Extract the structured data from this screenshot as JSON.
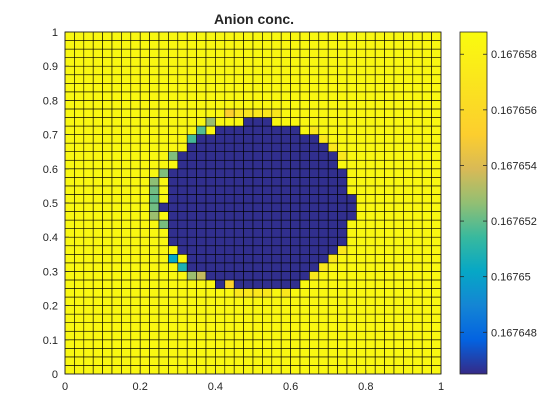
{
  "chart_data": {
    "type": "heatmap",
    "title": "Anion conc.",
    "xlabel": "",
    "ylabel": "",
    "xlim": [
      0,
      1
    ],
    "ylim": [
      0,
      1
    ],
    "grid_resolution": 40,
    "x_ticks": [
      "0",
      "0.2",
      "0.4",
      "0.6",
      "0.8",
      "1"
    ],
    "x_tick_values": [
      0,
      0.2,
      0.4,
      0.6,
      0.8,
      1
    ],
    "y_ticks": [
      "0",
      "0.1",
      "0.2",
      "0.3",
      "0.4",
      "0.5",
      "0.6",
      "0.7",
      "0.8",
      "0.9",
      "1"
    ],
    "y_tick_values": [
      0,
      0.1,
      0.2,
      0.3,
      0.4,
      0.5,
      0.6,
      0.7,
      0.8,
      0.9,
      1
    ],
    "colorbar": {
      "colormap": "parula",
      "range": [
        0.1676465,
        0.1676588
      ],
      "ticks": [
        "0.167648",
        "0.16765",
        "0.167652",
        "0.167654",
        "0.167656",
        "0.167658"
      ],
      "tick_values": [
        0.167648,
        0.16765,
        0.167652,
        0.167654,
        0.167656,
        0.167658
      ]
    },
    "field": {
      "background_value": 0.1676585,
      "inclusion_value": 0.1676466,
      "inclusion_shape": "circle",
      "inclusion_center": [
        0.514,
        0.49
      ],
      "inclusion_radius": 0.252,
      "edge_cells": [
        {
          "x": 0.4625,
          "y": 0.7625,
          "value": 0.1676568
        },
        {
          "x": 0.4875,
          "y": 0.7625,
          "value": 0.167657
        },
        {
          "x": 0.5125,
          "y": 0.7625,
          "value": 0.1676572
        },
        {
          "x": 0.5375,
          "y": 0.7625,
          "value": 0.1676572
        },
        {
          "x": 0.5625,
          "y": 0.7625,
          "value": 0.1676572
        },
        {
          "x": 0.4375,
          "y": 0.7625,
          "value": 0.1676552
        },
        {
          "x": 0.3875,
          "y": 0.7375,
          "value": 0.1676528
        },
        {
          "x": 0.3625,
          "y": 0.7125,
          "value": 0.1676518
        },
        {
          "x": 0.3375,
          "y": 0.6875,
          "value": 0.1676516
        },
        {
          "x": 0.6625,
          "y": 0.7125,
          "value": 0.1676572
        },
        {
          "x": 0.6875,
          "y": 0.6875,
          "value": 0.1676572
        },
        {
          "x": 0.7125,
          "y": 0.6625,
          "value": 0.1676572
        },
        {
          "x": 0.7375,
          "y": 0.6375,
          "value": 0.1676572
        },
        {
          "x": 0.7375,
          "y": 0.3625,
          "value": 0.1676572
        },
        {
          "x": 0.7125,
          "y": 0.3375,
          "value": 0.1676572
        },
        {
          "x": 0.6875,
          "y": 0.3125,
          "value": 0.1676572
        },
        {
          "x": 0.6625,
          "y": 0.2875,
          "value": 0.1676572
        },
        {
          "x": 0.5875,
          "y": 0.2375,
          "value": 0.1676572
        },
        {
          "x": 0.5375,
          "y": 0.2375,
          "value": 0.1676572
        },
        {
          "x": 0.5125,
          "y": 0.2375,
          "value": 0.1676572
        },
        {
          "x": 0.4875,
          "y": 0.2375,
          "value": 0.1676572
        },
        {
          "x": 0.4625,
          "y": 0.2375,
          "value": 0.1676572
        },
        {
          "x": 0.4375,
          "y": 0.2625,
          "value": 0.1676555
        },
        {
          "x": 0.3625,
          "y": 0.2875,
          "value": 0.1676535
        },
        {
          "x": 0.3375,
          "y": 0.2875,
          "value": 0.1676528
        },
        {
          "x": 0.3125,
          "y": 0.3125,
          "value": 0.1676508
        },
        {
          "x": 0.2875,
          "y": 0.3375,
          "value": 0.1676502
        },
        {
          "x": 0.2625,
          "y": 0.4375,
          "value": 0.1676523
        },
        {
          "x": 0.2375,
          "y": 0.4625,
          "value": 0.1676528
        },
        {
          "x": 0.2375,
          "y": 0.4875,
          "value": 0.1676522
        },
        {
          "x": 0.2375,
          "y": 0.5125,
          "value": 0.167652
        },
        {
          "x": 0.2375,
          "y": 0.5375,
          "value": 0.1676522
        },
        {
          "x": 0.2375,
          "y": 0.5625,
          "value": 0.1676526
        },
        {
          "x": 0.2625,
          "y": 0.5875,
          "value": 0.1676524
        },
        {
          "x": 0.2875,
          "y": 0.6375,
          "value": 0.1676524
        }
      ]
    }
  }
}
